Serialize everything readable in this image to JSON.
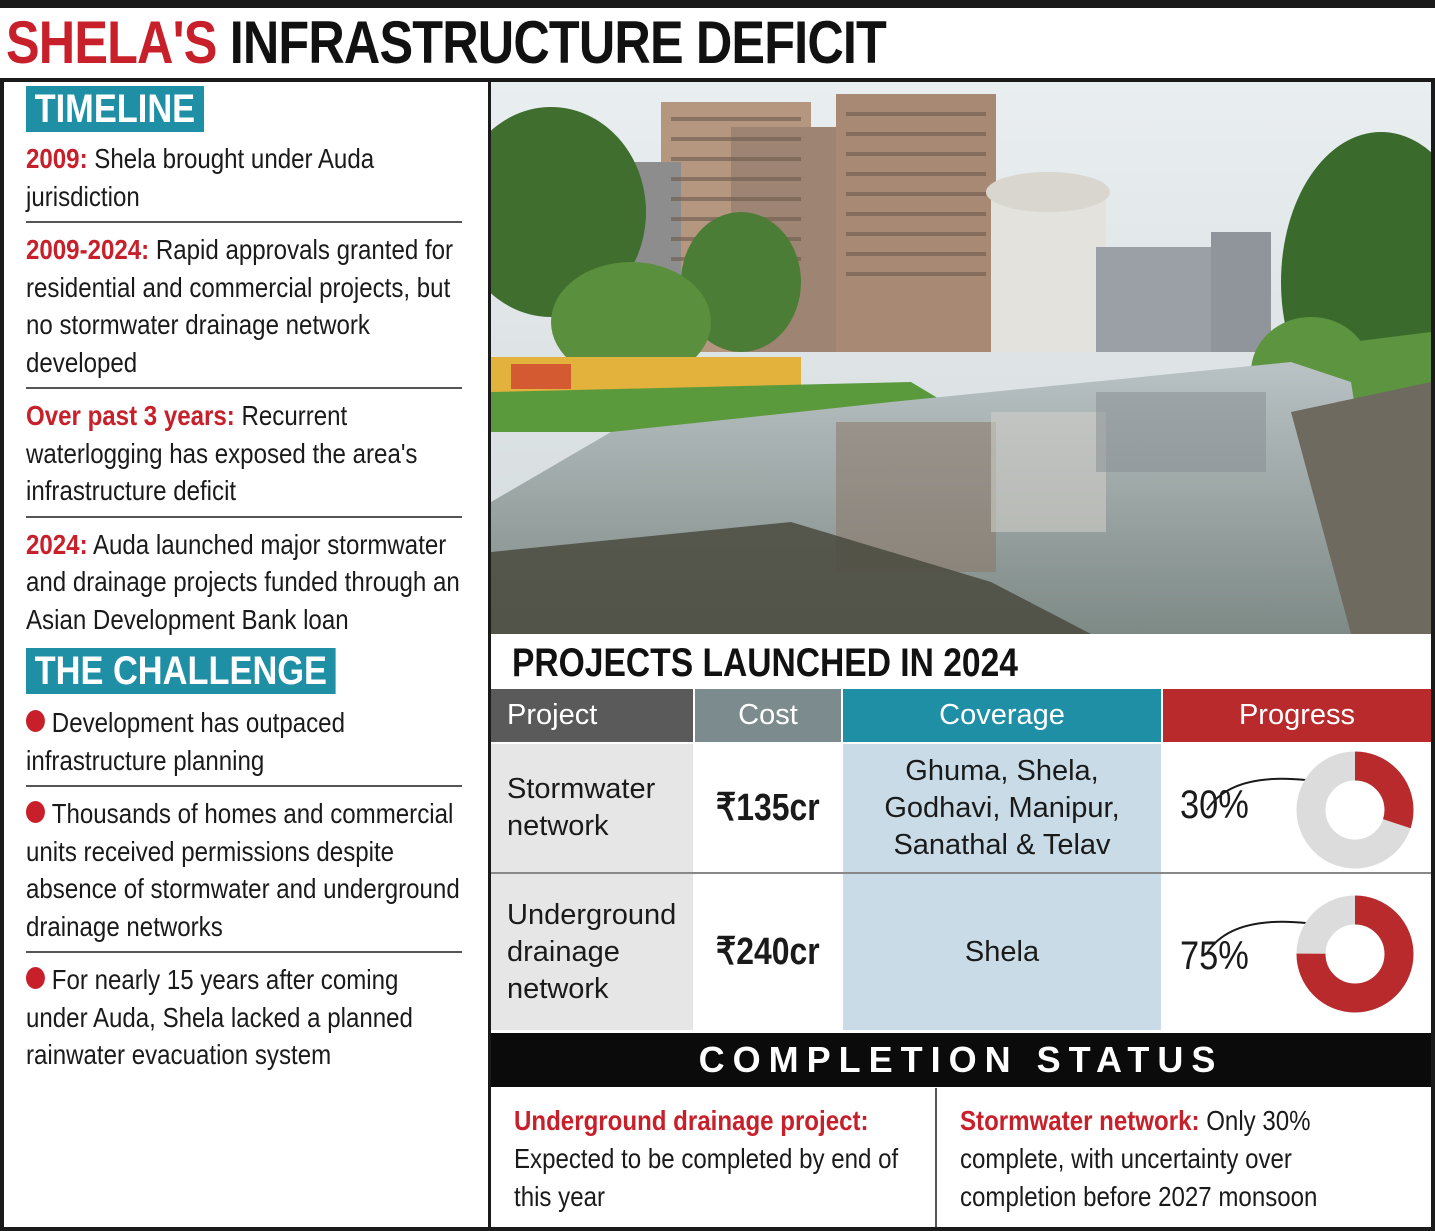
{
  "headline": {
    "red": "SHELA'S",
    "black": "INFRASTRUCTURE DEFICIT"
  },
  "timeline": {
    "title": "TIMELINE",
    "entries": [
      {
        "key": "2009:",
        "text": " Shela brought under Auda jurisdiction"
      },
      {
        "key": "2009-2024:",
        "text": " Rapid approvals granted for residential and commercial projects, but no stormwater drainage network developed"
      },
      {
        "key": "Over past 3 years:",
        "text": " Recurrent waterlogging has exposed the area's infrastructure deficit"
      },
      {
        "key": "2024:",
        "text": " Auda launched major stormwater and drainage projects funded through an Asian Development Bank loan"
      }
    ]
  },
  "challenge": {
    "title": "THE CHALLENGE",
    "items": [
      "Development has outpaced infrastructure planning",
      "Thousands of homes and commercial units received permissions despite absence of stormwater and underground drainage networks",
      "For nearly 15 years after coming under Auda, Shela lacked a planned rainwater evacuation system"
    ]
  },
  "projects": {
    "title": "PROJECTS LAUNCHED IN 2024",
    "headers": {
      "project": "Project",
      "cost": "Cost",
      "coverage": "Coverage",
      "progress": "Progress"
    },
    "rows": [
      {
        "project": "Stormwater network",
        "cost": "₹135cr",
        "coverage": "Ghuma, Shela, Godhavi, Manipur, Sanathal & Telav",
        "progress_label": "30%",
        "progress": 0.3
      },
      {
        "project": "Underground drainage network",
        "cost": "₹240cr",
        "coverage": "Shela",
        "progress_label": "75%",
        "progress": 0.75
      }
    ]
  },
  "completion": {
    "title": "COMPLETION STATUS",
    "left": {
      "key": "Underground drainage project:",
      "text": " Expected to be completed by end of this year"
    },
    "right": {
      "key": "Stormwater network:",
      "text": " Only 30% complete, with uncertainty over completion before 2027 monsoon"
    }
  },
  "colors": {
    "accent_red": "#c8202a",
    "teal": "#1f8fa6",
    "progress_red": "#b92a2c",
    "progress_track": "#dcdcdc",
    "coverage_bg": "#c9dbe6"
  }
}
